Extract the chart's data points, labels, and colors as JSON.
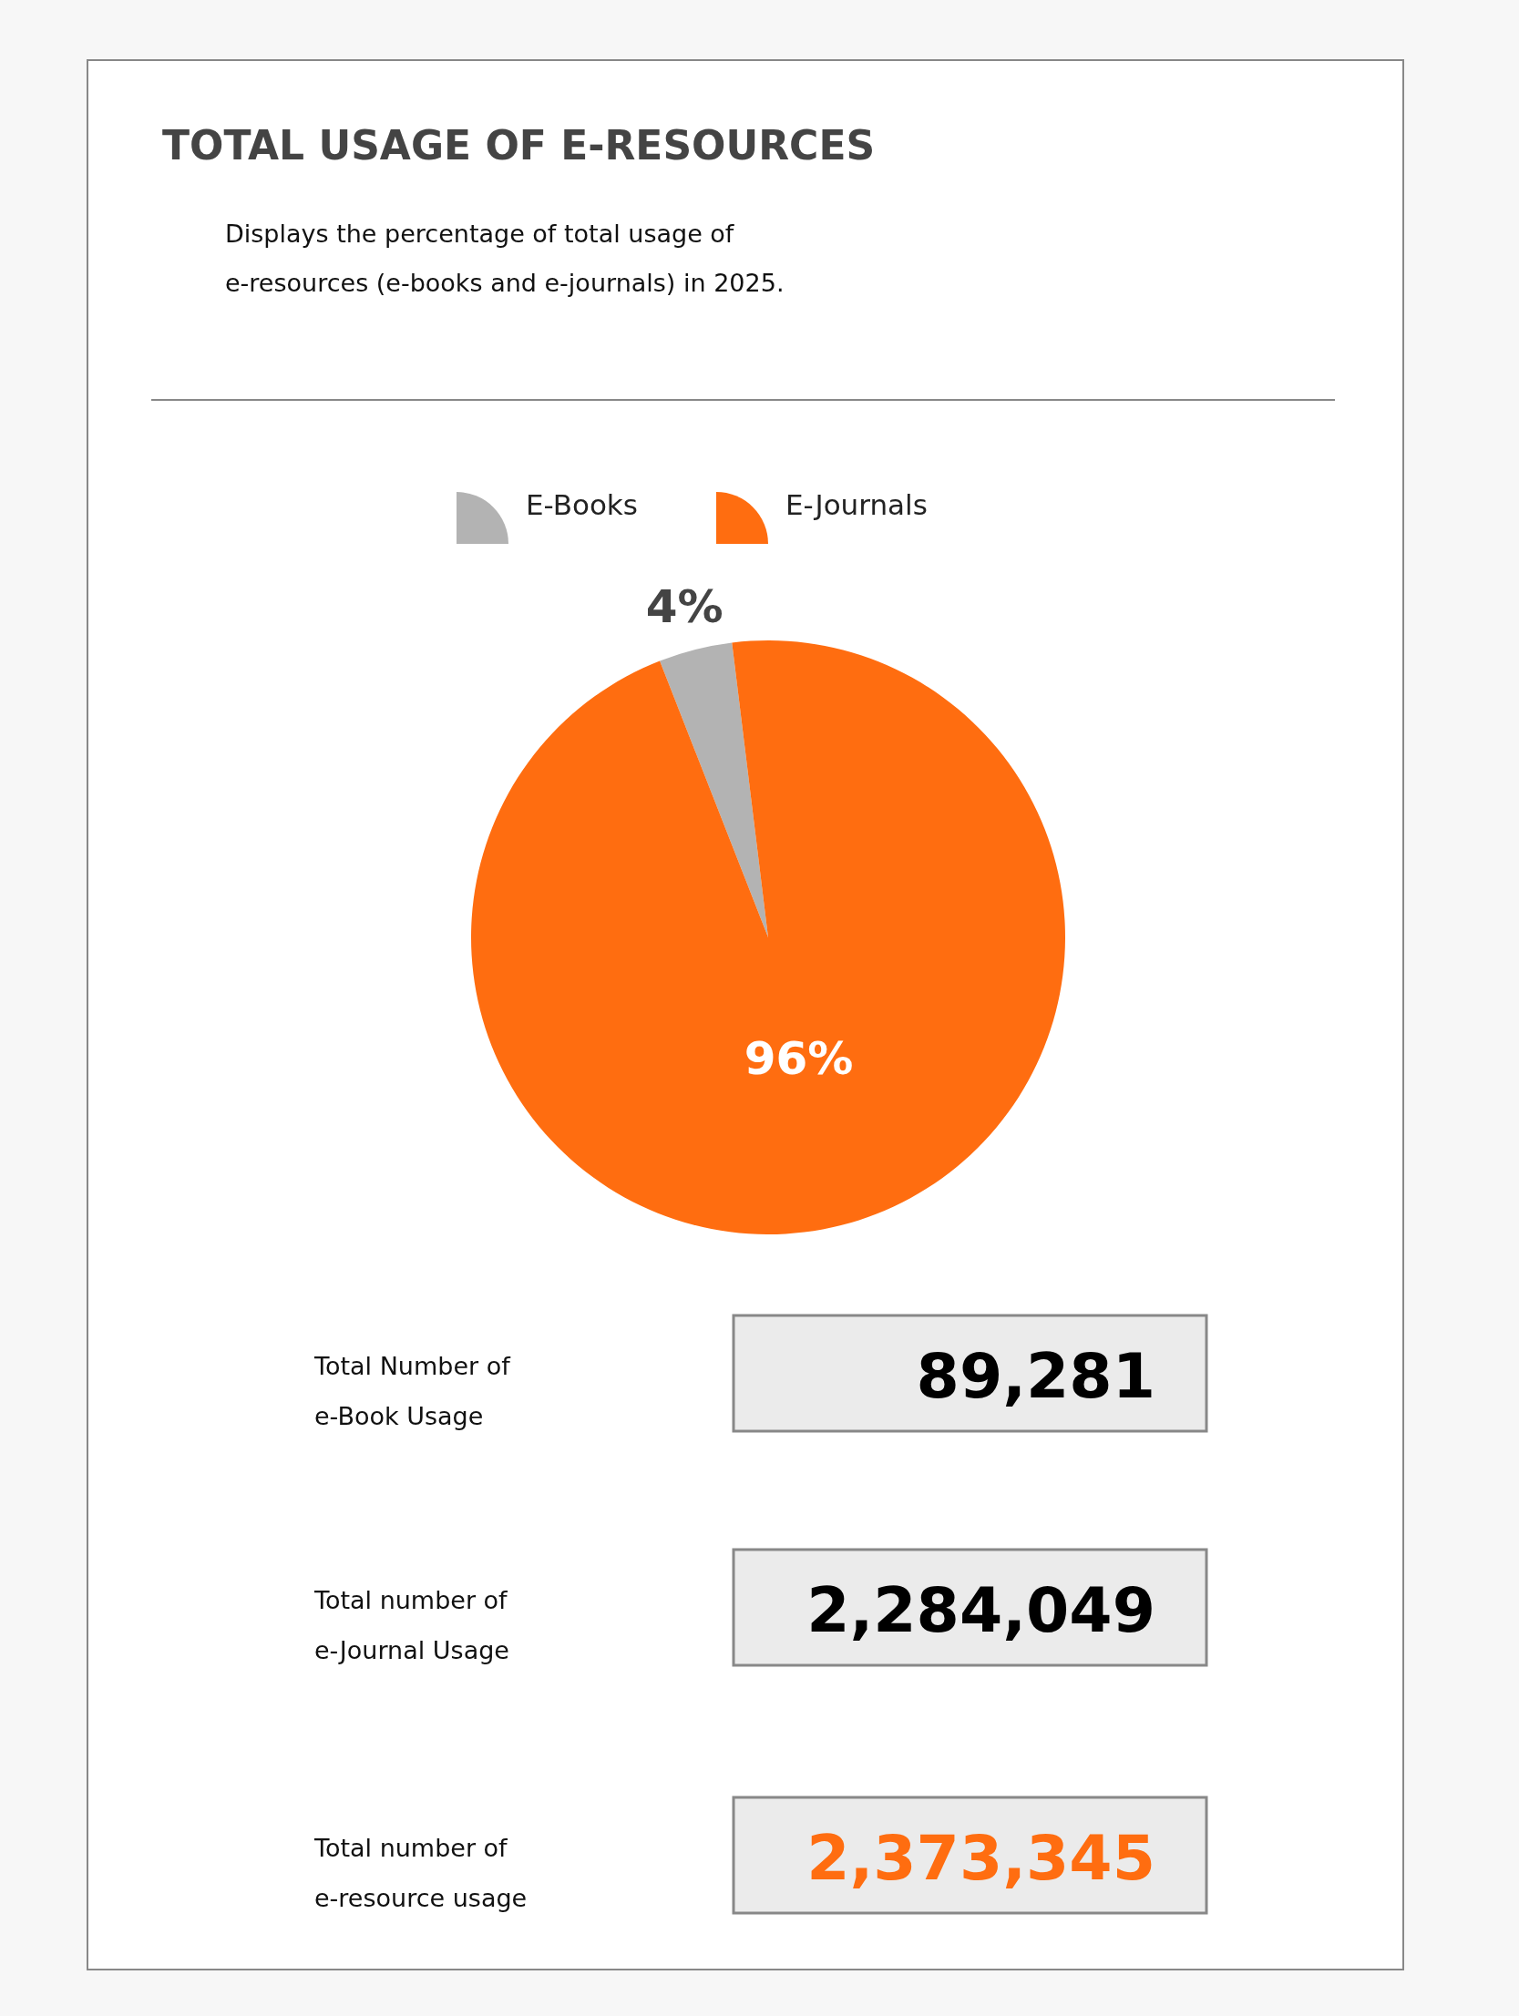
{
  "chart_data": [
    {
      "type": "pie",
      "title": "TOTAL USAGE OF E-RESOURCES",
      "subtitle": "Displays the percentage of total usage of e-resources (e-books and e-journals) in 2025.",
      "categories": [
        "E-Books",
        "E-Journals"
      ],
      "values": [
        4,
        96
      ],
      "value_labels": [
        "4%",
        "96%"
      ],
      "colors": [
        "#b3b3b3",
        "#ff6d10"
      ],
      "legend": "top"
    },
    {
      "type": "other",
      "categories": [
        "Total Number of e-Book Usage",
        "Total number of e-Journal Usage",
        "Total number of e-resource usage"
      ],
      "values": [
        89281,
        2284049,
        2373345
      ],
      "value_labels": [
        "89,281",
        "2,284,049",
        "2,373,345"
      ],
      "colors": [
        "#ebebeb",
        "#ebebeb",
        "#ebebeb"
      ]
    }
  ]
}
